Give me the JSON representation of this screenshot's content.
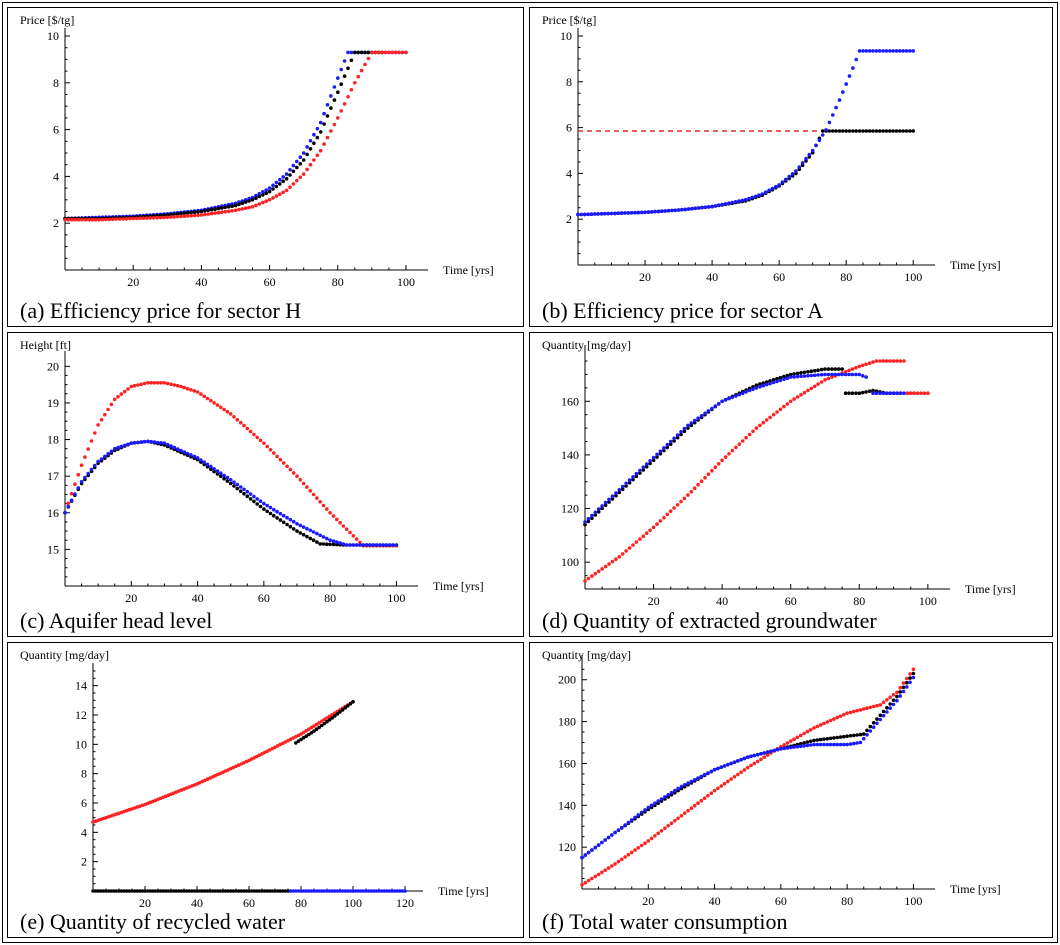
{
  "colors": {
    "blue": "#1a1aff",
    "black": "#000000",
    "red": "#ff2222",
    "refline": "#e00000"
  },
  "chart_data": [
    {
      "id": "a",
      "type": "scatter",
      "caption": "(a) Efficiency price for sector H",
      "ylabel": "Price [$/tg]",
      "xlabel": "Time [yrs]",
      "xlim": [
        0,
        105
      ],
      "ylim": [
        0,
        10
      ],
      "xticks": [
        20,
        40,
        60,
        80,
        100
      ],
      "yticks": [
        2,
        4,
        6,
        8,
        10
      ],
      "series": [
        {
          "color": "blue",
          "x": [
            0,
            10,
            20,
            30,
            40,
            50,
            55,
            60,
            65,
            70,
            75,
            80,
            83,
            87,
            93,
            100
          ],
          "y": [
            2.2,
            2.25,
            2.3,
            2.4,
            2.55,
            2.85,
            3.1,
            3.5,
            4.1,
            5.0,
            6.3,
            8.2,
            9.3,
            9.3,
            9.3,
            9.3
          ]
        },
        {
          "color": "black",
          "x": [
            0,
            10,
            20,
            30,
            40,
            50,
            55,
            60,
            65,
            70,
            75,
            80,
            85,
            90,
            93
          ],
          "y": [
            2.2,
            2.2,
            2.25,
            2.35,
            2.5,
            2.75,
            3.0,
            3.35,
            3.9,
            4.7,
            5.9,
            7.6,
            9.3,
            9.3,
            9.3
          ]
        },
        {
          "color": "red",
          "x": [
            0,
            10,
            20,
            30,
            40,
            50,
            55,
            60,
            65,
            70,
            75,
            80,
            85,
            90,
            93,
            100
          ],
          "y": [
            2.15,
            2.15,
            2.2,
            2.25,
            2.35,
            2.55,
            2.7,
            3.0,
            3.4,
            4.1,
            5.1,
            6.5,
            8.0,
            9.3,
            9.3,
            9.3
          ]
        }
      ]
    },
    {
      "id": "b",
      "type": "scatter",
      "caption": "(b) Efficiency price for sector A",
      "ylabel": "Price [$/tg]",
      "xlabel": "Time [yrs]",
      "xlim": [
        0,
        105
      ],
      "ylim": [
        0,
        10
      ],
      "xticks": [
        20,
        40,
        60,
        80,
        100
      ],
      "yticks": [
        2,
        4,
        6,
        8,
        10
      ],
      "refline": {
        "y": 5.85,
        "x0": 0,
        "x1": 73
      },
      "series": [
        {
          "color": "black",
          "x": [
            0,
            10,
            20,
            30,
            40,
            50,
            55,
            60,
            65,
            70,
            73,
            75,
            80,
            90,
            100
          ],
          "y": [
            2.2,
            2.25,
            2.3,
            2.4,
            2.55,
            2.8,
            3.05,
            3.45,
            4.0,
            4.9,
            5.85,
            5.85,
            5.85,
            5.85,
            5.85
          ]
        },
        {
          "color": "blue",
          "x": [
            0,
            10,
            20,
            30,
            40,
            50,
            55,
            60,
            65,
            70,
            74,
            78,
            82,
            84,
            90,
            100
          ],
          "y": [
            2.2,
            2.25,
            2.3,
            2.4,
            2.55,
            2.85,
            3.1,
            3.5,
            4.1,
            5.0,
            5.9,
            7.2,
            8.6,
            9.35,
            9.35,
            9.35
          ]
        }
      ]
    },
    {
      "id": "c",
      "type": "scatter",
      "caption": "(c) Aquifer head level",
      "ylabel": "Height [ft]",
      "xlabel": "Time [yrs]",
      "xlim": [
        0,
        105
      ],
      "ylim": [
        14,
        20.2
      ],
      "xticks": [
        20,
        40,
        60,
        80,
        100
      ],
      "yticks": [
        15,
        16,
        17,
        18,
        19,
        20
      ],
      "series": [
        {
          "color": "red",
          "x": [
            0,
            5,
            10,
            15,
            20,
            25,
            30,
            35,
            40,
            50,
            60,
            70,
            80,
            90,
            93,
            100
          ],
          "y": [
            16.0,
            17.3,
            18.4,
            19.1,
            19.45,
            19.55,
            19.55,
            19.45,
            19.3,
            18.7,
            17.9,
            17.0,
            16.0,
            15.1,
            15.1,
            15.1
          ]
        },
        {
          "color": "black",
          "x": [
            0,
            5,
            10,
            15,
            20,
            25,
            30,
            40,
            50,
            60,
            70,
            77,
            85,
            100
          ],
          "y": [
            16.0,
            16.8,
            17.35,
            17.7,
            17.9,
            17.95,
            17.85,
            17.45,
            16.8,
            16.1,
            15.5,
            15.15,
            15.12,
            15.12
          ]
        },
        {
          "color": "blue",
          "x": [
            0,
            5,
            10,
            15,
            20,
            25,
            30,
            40,
            50,
            60,
            70,
            80,
            85,
            100
          ],
          "y": [
            16.0,
            16.85,
            17.4,
            17.75,
            17.9,
            17.95,
            17.9,
            17.5,
            16.9,
            16.25,
            15.7,
            15.25,
            15.12,
            15.12
          ]
        }
      ]
    },
    {
      "id": "d",
      "type": "scatter",
      "caption": "(d) Quantity of extracted groundwater",
      "ylabel": "Quantity [mg/day]",
      "xlabel": "Time [yrs]",
      "xlim": [
        0,
        105
      ],
      "ylim": [
        90,
        178
      ],
      "xticks": [
        20,
        40,
        60,
        80,
        100
      ],
      "yticks": [
        100,
        120,
        140,
        160
      ],
      "series": [
        {
          "color": "red",
          "x": [
            0,
            10,
            20,
            30,
            40,
            50,
            60,
            70,
            80,
            85,
            90,
            93
          ],
          "y": [
            93,
            102,
            113,
            125,
            138,
            150,
            160,
            168,
            173,
            175,
            175,
            175
          ]
        },
        {
          "color": "black",
          "x": [
            0,
            10,
            20,
            30,
            40,
            50,
            60,
            70,
            75
          ],
          "y": [
            114,
            126,
            138,
            150,
            160,
            166,
            170,
            172,
            172
          ]
        },
        {
          "color": "blue",
          "x": [
            0,
            10,
            20,
            30,
            40,
            50,
            60,
            70,
            80,
            82
          ],
          "y": [
            115,
            127,
            139,
            151,
            160,
            165,
            169,
            170,
            170,
            169
          ]
        },
        {
          "color": "black",
          "x": [
            76,
            80,
            84,
            88,
            92
          ],
          "y": [
            163,
            163,
            164,
            163,
            163
          ]
        },
        {
          "color": "blue",
          "x": [
            84,
            88,
            92,
            96
          ],
          "y": [
            163,
            163,
            163,
            163
          ]
        },
        {
          "color": "red",
          "x": [
            94,
            97,
            100
          ],
          "y": [
            163,
            163,
            163
          ]
        }
      ]
    },
    {
      "id": "e",
      "type": "scatter",
      "caption": "(e) Quantity of recycled water",
      "ylabel": "Quantity [mg/day]",
      "xlabel": "Time [yrs]",
      "xlim": [
        0,
        125
      ],
      "ylim": [
        0,
        15
      ],
      "xticks": [
        20,
        40,
        60,
        80,
        100,
        120
      ],
      "yticks": [
        2,
        4,
        6,
        8,
        10,
        12,
        14
      ],
      "series": [
        {
          "color": "black",
          "x": [
            0,
            20,
            40,
            60,
            76
          ],
          "y": [
            0,
            0,
            0,
            0,
            0
          ]
        },
        {
          "color": "blue",
          "x": [
            76,
            90,
            105,
            120
          ],
          "y": [
            0,
            0,
            0,
            0
          ]
        },
        {
          "color": "red",
          "x": [
            0,
            10,
            20,
            30,
            40,
            50,
            60,
            70,
            80,
            90,
            100
          ],
          "y": [
            4.7,
            5.3,
            5.9,
            6.6,
            7.3,
            8.1,
            8.9,
            9.8,
            10.7,
            11.8,
            12.9
          ]
        },
        {
          "color": "black",
          "x": [
            78,
            85,
            92,
            100
          ],
          "y": [
            10.1,
            10.9,
            11.8,
            12.9
          ]
        }
      ]
    },
    {
      "id": "f",
      "type": "scatter",
      "caption": "(f) Total water consumption",
      "ylabel": "Quantity [mg/day]",
      "xlabel": "Time [yrs]",
      "xlim": [
        0,
        105
      ],
      "ylim": [
        100,
        208
      ],
      "xticks": [
        20,
        40,
        60,
        80,
        100
      ],
      "yticks": [
        120,
        140,
        160,
        180,
        200
      ],
      "series": [
        {
          "color": "red",
          "x": [
            0,
            10,
            20,
            30,
            40,
            50,
            60,
            70,
            80,
            90,
            95,
            100
          ],
          "y": [
            102,
            112,
            123,
            135,
            147,
            158,
            168,
            177,
            184,
            188,
            194,
            205
          ]
        },
        {
          "color": "black",
          "x": [
            0,
            10,
            20,
            30,
            40,
            50,
            60,
            70,
            80,
            85,
            90,
            95,
            100
          ],
          "y": [
            115,
            127,
            138,
            148,
            157,
            163,
            167,
            171,
            173,
            174,
            183,
            192,
            203
          ]
        },
        {
          "color": "blue",
          "x": [
            0,
            10,
            20,
            30,
            40,
            50,
            60,
            70,
            80,
            84,
            90,
            95,
            100
          ],
          "y": [
            115,
            127,
            139,
            149,
            157,
            163,
            167,
            169,
            169,
            170,
            181,
            190,
            201
          ]
        }
      ]
    }
  ]
}
